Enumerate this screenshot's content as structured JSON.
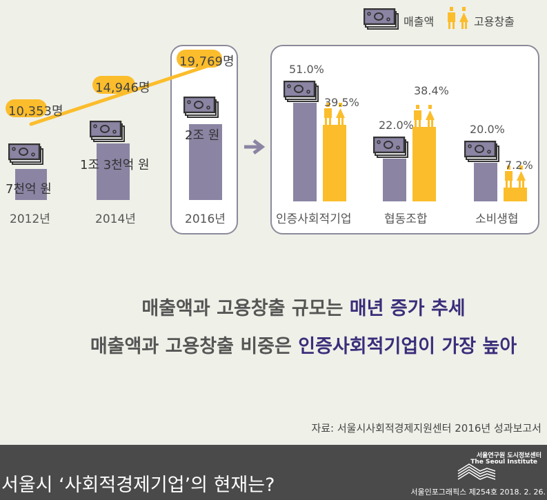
{
  "legend": {
    "sales": "매출액",
    "employment": "고용창출"
  },
  "colors": {
    "sales": "#8b84a3",
    "employment": "#fbbd2c",
    "text_accent": "#3b2d7a"
  },
  "chart_data": [
    {
      "type": "bar+line",
      "categories": [
        "2012년",
        "2014년",
        "2016년"
      ],
      "sales_labels": [
        "7천억 원",
        "1조 3천억 원",
        "2조 원"
      ],
      "sales_values_trillion_won": [
        0.7,
        1.3,
        2.0
      ],
      "employment_values": [
        10353,
        14946,
        19769
      ],
      "employment_labels": [
        "10,353",
        "14,946",
        "19,769"
      ],
      "employment_unit": "명"
    },
    {
      "type": "bar",
      "categories": [
        "인증사회적기업",
        "협동조합",
        "소비생협"
      ],
      "series": [
        {
          "name": "매출액",
          "values": [
            51.0,
            22.0,
            20.0
          ],
          "labels": [
            "51.0%",
            "22.0%",
            "20.0%"
          ]
        },
        {
          "name": "고용창출",
          "values": [
            39.5,
            38.4,
            7.2
          ],
          "labels": [
            "39.5%",
            "38.4%",
            "7.2%"
          ]
        }
      ]
    }
  ],
  "headline1": {
    "pre": "매출액과 고용창출 규모는 ",
    "em": "매년 증가 추세"
  },
  "headline2": {
    "pre": "매출액과 고용창출 비중은 ",
    "em": "인증사회적기업이 가장 높아"
  },
  "source": "자료: 서울시사회적경제지원센터 2016년 성과보고서",
  "footer": {
    "title": "서울시 ‘사회적경제기업’의 현재는?",
    "org_kr": "서울연구원 도시정보센터",
    "org_en": "The Seoul Institute",
    "issue": "서울인포그래픽스 제254호 2018. 2. 26."
  }
}
